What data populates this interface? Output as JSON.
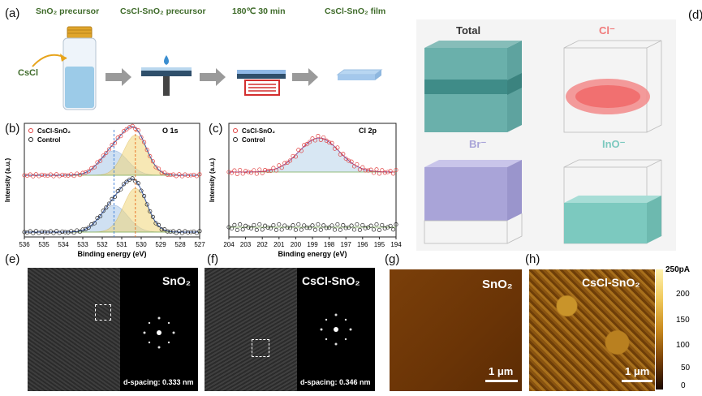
{
  "panel_a": {
    "label": "(a)",
    "steps": [
      "SnO₂ precursor",
      "CsCl-SnO₂ precursor",
      "180℃ 30 min",
      "CsCl-SnO₂ film"
    ],
    "reagent": "CsCl"
  },
  "panel_d": {
    "label": "(d)",
    "cubes": [
      {
        "name": "Total",
        "color": "#5aa7a3"
      },
      {
        "name": "Cl⁻",
        "color": "#f07979"
      },
      {
        "name": "Br⁻",
        "color": "#a9a4d8"
      },
      {
        "name": "InO⁻",
        "color": "#7cc9bf"
      }
    ]
  },
  "chart_data": [
    {
      "type": "line",
      "panel": "(b)",
      "annotation": "O 1s",
      "xlabel": "Binding energy (eV)",
      "ylabel": "Intensity (a.u.)",
      "xlim": [
        536,
        527
      ],
      "x_ticks": [
        536,
        535,
        534,
        533,
        532,
        531,
        530,
        529,
        528,
        527
      ],
      "legend": [
        "CsCl-SnO₂",
        "Control"
      ],
      "peaks": [
        531.4,
        530.3
      ]
    },
    {
      "type": "line",
      "panel": "(c)",
      "annotation": "Cl 2p",
      "xlabel": "Binding energy (eV)",
      "ylabel": "Intensity (a.u.)",
      "xlim": [
        204,
        194
      ],
      "x_ticks": [
        204,
        203,
        202,
        201,
        200,
        199,
        198,
        197,
        196,
        195,
        194
      ],
      "legend": [
        "CsCl-SnO₂",
        "Control"
      ],
      "peaks": [
        198.6
      ]
    }
  ],
  "panel_e": {
    "label": "(e)",
    "title": "SnO₂",
    "spacing": "d-spacing: 0.333 nm"
  },
  "panel_f": {
    "label": "(f)",
    "title": "CsCl-SnO₂",
    "spacing": "d-spacing: 0.346 nm"
  },
  "panel_g": {
    "label": "(g)",
    "title": "SnO₂",
    "scale": "1 μm"
  },
  "panel_h": {
    "label": "(h)",
    "title": "CsCl-SnO₂",
    "scale": "1 μm"
  },
  "colorbar": {
    "labels": [
      "250pA",
      "200",
      "150",
      "100",
      "50",
      "0"
    ]
  }
}
